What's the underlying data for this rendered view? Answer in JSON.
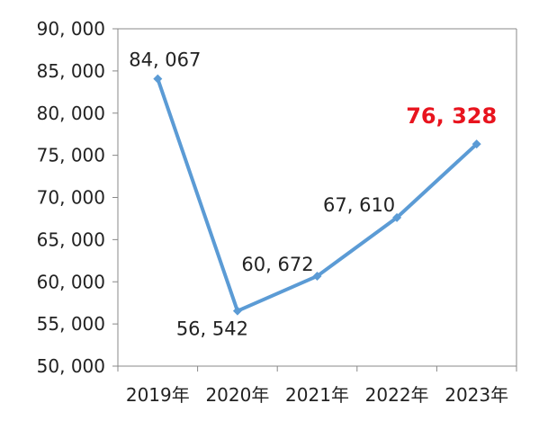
{
  "chart_data": {
    "type": "line",
    "categories": [
      "2019年",
      "2020年",
      "2021年",
      "2022年",
      "2023年"
    ],
    "series": [
      {
        "values": [
          84067,
          56542,
          60672,
          67610,
          76328
        ],
        "labels": [
          "84, 067",
          "56, 542",
          "60, 672",
          "67, 610",
          "76, 328"
        ]
      }
    ],
    "yticks": [
      "90, 000",
      "85, 000",
      "80, 000",
      "75, 000",
      "70, 000",
      "65, 000",
      "60, 000",
      "55, 000",
      "50, 000"
    ],
    "ylim": [
      50000,
      90000
    ],
    "grid": false,
    "highlight_index": 4,
    "colors": {
      "line": "#5b9bd5",
      "axis": "#888888",
      "highlight": "#e8141e",
      "text": "#222222"
    }
  }
}
